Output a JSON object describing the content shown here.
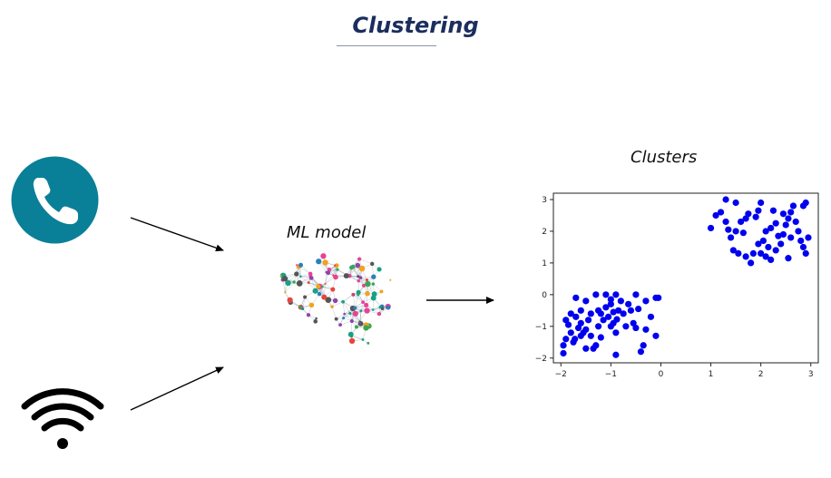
{
  "title": "Clustering",
  "model": {
    "label": "ML model"
  },
  "chart_data": {
    "type": "scatter",
    "title": "Clusters",
    "xlabel": "",
    "ylabel": "",
    "xlim": [
      -2.15,
      3.15
    ],
    "ylim": [
      -2.15,
      3.2
    ],
    "xticks": [
      -2,
      -1,
      0,
      1,
      2,
      3
    ],
    "yticks": [
      -2,
      -1,
      0,
      1,
      2,
      3
    ],
    "grid": false,
    "color": "#0000ee",
    "series": [
      {
        "name": "",
        "points": [
          [
            -1.3,
            0.0
          ],
          [
            -1.9,
            -0.8
          ],
          [
            -1.8,
            -0.6
          ],
          [
            -1.7,
            -0.1
          ],
          [
            -1.5,
            -0.2
          ],
          [
            -1.6,
            -0.5
          ],
          [
            -1.7,
            -0.7
          ],
          [
            -1.6,
            -0.9
          ],
          [
            -1.8,
            -1.2
          ],
          [
            -1.9,
            -1.4
          ],
          [
            -1.95,
            -1.6
          ],
          [
            -1.75,
            -1.5
          ],
          [
            -1.6,
            -1.3
          ],
          [
            -1.5,
            -1.1
          ],
          [
            -1.4,
            -1.3
          ],
          [
            -1.3,
            -1.6
          ],
          [
            -1.35,
            -1.7
          ],
          [
            -1.55,
            -1.2
          ],
          [
            -1.45,
            -0.8
          ],
          [
            -1.2,
            -0.6
          ],
          [
            -1.1,
            -0.4
          ],
          [
            -1.0,
            -0.3
          ],
          [
            -1.05,
            -0.7
          ],
          [
            -0.95,
            -0.9
          ],
          [
            -0.85,
            -0.5
          ],
          [
            -0.75,
            -0.6
          ],
          [
            -0.6,
            -0.5
          ],
          [
            -0.55,
            -0.9
          ],
          [
            -0.7,
            -1.0
          ],
          [
            -0.9,
            -1.2
          ],
          [
            -1.0,
            -0.15
          ],
          [
            -0.9,
            0.0
          ],
          [
            -0.5,
            0.0
          ],
          [
            -0.3,
            -0.2
          ],
          [
            -0.2,
            -0.7
          ],
          [
            -0.3,
            -1.1
          ],
          [
            -0.1,
            -1.3
          ],
          [
            -0.35,
            -1.6
          ],
          [
            -0.4,
            -1.8
          ],
          [
            -0.9,
            -1.9
          ],
          [
            -1.0,
            -1.0
          ],
          [
            -1.15,
            -0.8
          ],
          [
            -1.25,
            -1.0
          ],
          [
            -1.4,
            -0.6
          ],
          [
            -1.65,
            -1.05
          ],
          [
            -1.85,
            -0.95
          ],
          [
            -1.2,
            -1.35
          ],
          [
            -0.8,
            -0.2
          ],
          [
            -0.65,
            -0.3
          ],
          [
            -1.1,
            0.0
          ],
          [
            -0.1,
            -0.1
          ],
          [
            -0.05,
            -0.1
          ],
          [
            -0.45,
            -0.45
          ],
          [
            -1.5,
            -1.7
          ],
          [
            -1.95,
            -1.85
          ],
          [
            -0.95,
            -0.55
          ],
          [
            -0.88,
            -0.78
          ],
          [
            -1.25,
            -0.5
          ],
          [
            -1.72,
            -1.4
          ],
          [
            -0.5,
            -1.05
          ],
          [
            1.1,
            2.5
          ],
          [
            1.2,
            2.6
          ],
          [
            1.3,
            3.0
          ],
          [
            1.5,
            2.9
          ],
          [
            1.0,
            2.1
          ],
          [
            1.3,
            2.3
          ],
          [
            1.4,
            1.8
          ],
          [
            1.5,
            2.0
          ],
          [
            1.6,
            2.3
          ],
          [
            1.7,
            2.4
          ],
          [
            1.45,
            1.4
          ],
          [
            1.55,
            1.3
          ],
          [
            1.7,
            1.2
          ],
          [
            1.8,
            1.0
          ],
          [
            1.85,
            1.3
          ],
          [
            1.95,
            1.6
          ],
          [
            2.05,
            1.7
          ],
          [
            2.1,
            2.0
          ],
          [
            2.2,
            2.1
          ],
          [
            2.15,
            1.5
          ],
          [
            2.0,
            1.3
          ],
          [
            2.1,
            1.2
          ],
          [
            2.2,
            1.1
          ],
          [
            2.3,
            1.4
          ],
          [
            2.4,
            1.6
          ],
          [
            2.45,
            1.9
          ],
          [
            2.5,
            2.2
          ],
          [
            2.55,
            2.4
          ],
          [
            2.6,
            2.6
          ],
          [
            2.65,
            2.8
          ],
          [
            2.7,
            2.3
          ],
          [
            2.75,
            2.0
          ],
          [
            2.8,
            1.7
          ],
          [
            2.85,
            1.5
          ],
          [
            2.9,
            1.3
          ],
          [
            2.95,
            1.8
          ],
          [
            2.9,
            2.9
          ],
          [
            2.85,
            2.8
          ],
          [
            2.6,
            1.8
          ],
          [
            2.55,
            1.15
          ],
          [
            2.35,
            1.85
          ],
          [
            1.75,
            2.55
          ],
          [
            1.9,
            2.45
          ],
          [
            1.95,
            2.65
          ],
          [
            2.0,
            2.9
          ],
          [
            2.25,
            2.65
          ],
          [
            2.3,
            2.25
          ],
          [
            2.45,
            2.55
          ],
          [
            1.35,
            2.05
          ],
          [
            1.65,
            1.95
          ]
        ]
      }
    ]
  }
}
